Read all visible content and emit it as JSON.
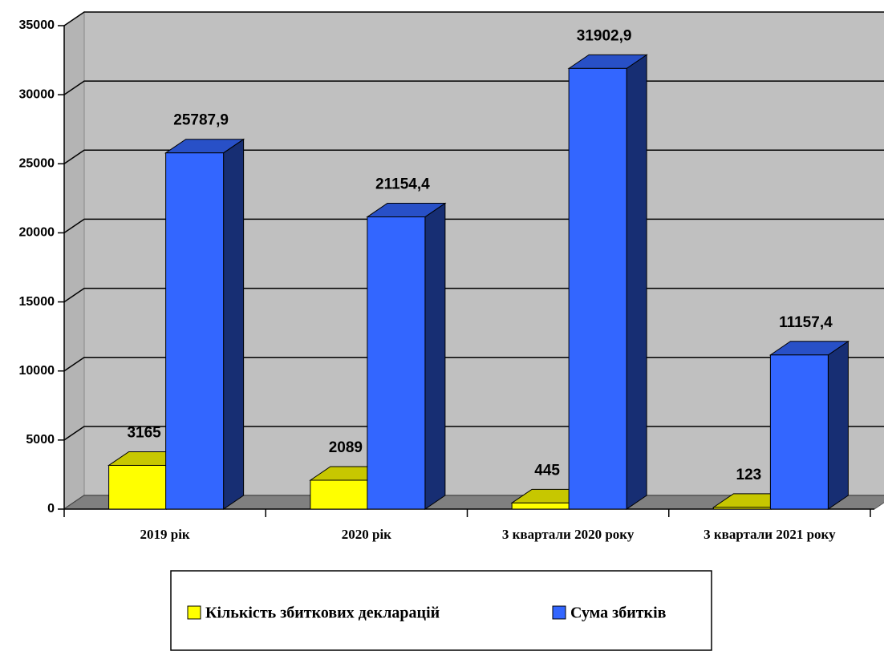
{
  "chart_data": {
    "type": "bar3d",
    "categories": [
      "2019 рік",
      "2020 рік",
      "3 квартали 2020 року",
      "3 квартали 2021 року"
    ],
    "series": [
      {
        "name": "Кількість збиткових декларацій",
        "color": "#ffff00",
        "values": [
          3165,
          2089,
          445,
          123
        ]
      },
      {
        "name": "Сума збитків",
        "color": "#3366ff",
        "values": [
          25787.9,
          21154.4,
          31902.9,
          11157.4
        ],
        "value_labels": [
          "25787,9",
          "21154,4",
          "31902,9",
          "11157,4"
        ]
      }
    ],
    "ylim": [
      0,
      35000
    ],
    "yticks": [
      0,
      5000,
      10000,
      15000,
      20000,
      25000,
      30000,
      35000
    ],
    "grid": true,
    "legend": "bottom"
  }
}
